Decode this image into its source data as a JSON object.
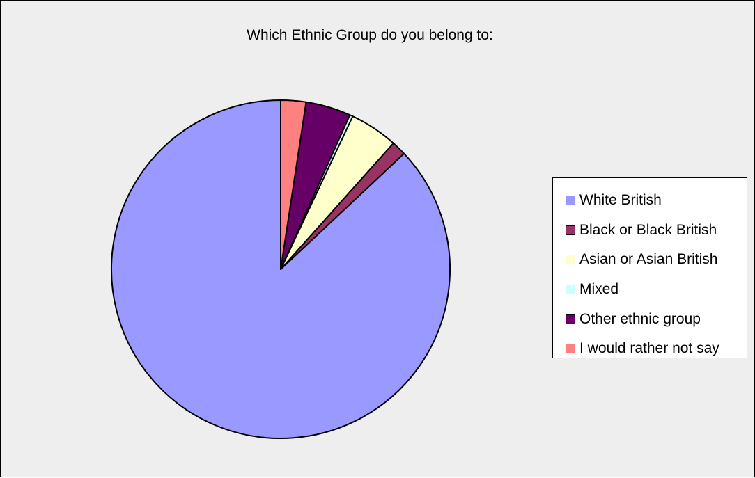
{
  "chart_data": {
    "type": "pie",
    "title": "Which Ethnic Group do you belong to:",
    "legend_position": "right",
    "slices": [
      {
        "label": "White British",
        "value": 87.0,
        "color": "#9999ff"
      },
      {
        "label": "Black or Black British",
        "value": 1.4,
        "color": "#993366"
      },
      {
        "label": "Asian or Asian British",
        "value": 4.6,
        "color": "#ffffcc"
      },
      {
        "label": "Mixed",
        "value": 0.3,
        "color": "#ccffff"
      },
      {
        "label": "Other ethnic group",
        "value": 4.3,
        "color": "#660066"
      },
      {
        "label": "I would rather not say",
        "value": 2.4,
        "color": "#ff8080"
      }
    ]
  }
}
